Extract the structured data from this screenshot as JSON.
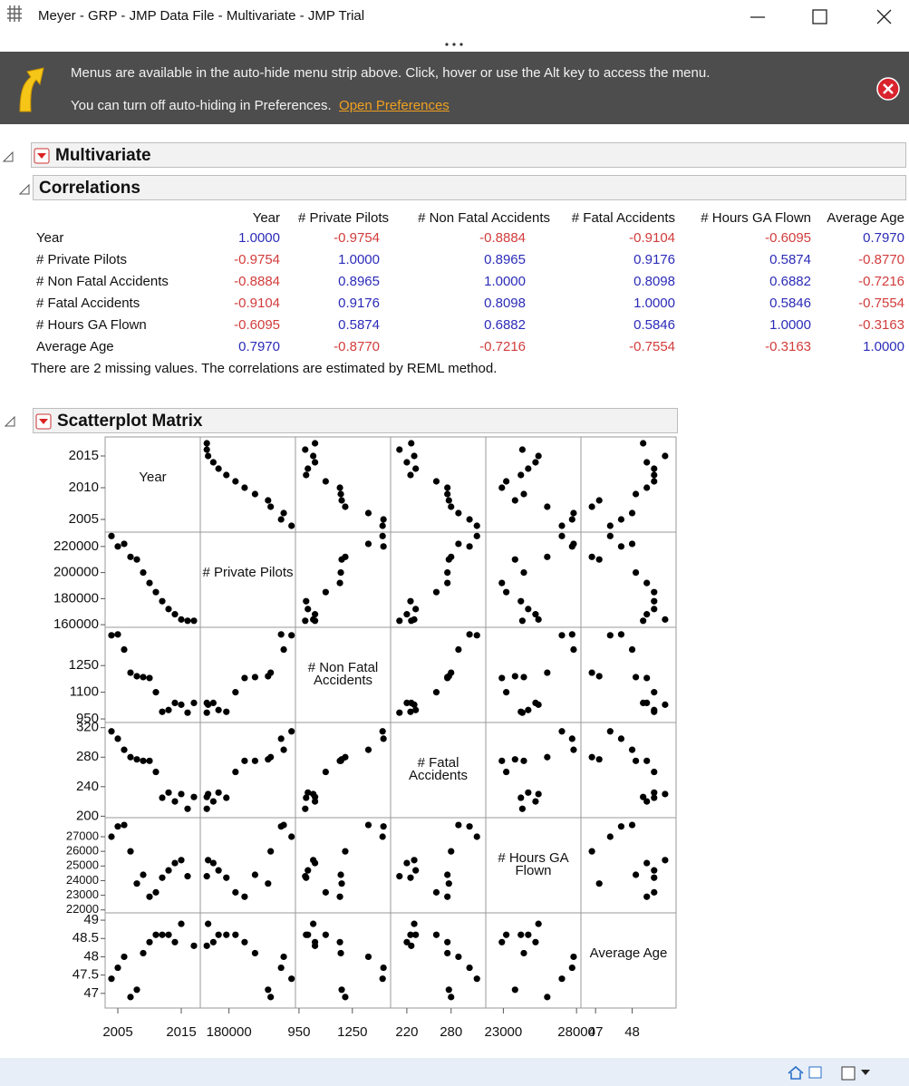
{
  "window": {
    "title": "Meyer - GRP - JMP Data File - Multivariate - JMP Trial"
  },
  "banner": {
    "line1": "Menus are available in the auto-hide menu strip above. Click, hover or use the Alt key to access the menu.",
    "line2": "You can turn off auto-hiding in Preferences.",
    "link": "Open Preferences"
  },
  "sections": {
    "multivariate": "Multivariate",
    "correlations": "Correlations",
    "scatterplot_matrix": "Scatterplot Matrix"
  },
  "variables": [
    {
      "name": "Year",
      "values": [
        2004,
        2005,
        2006,
        2007,
        2008,
        2009,
        2010,
        2011,
        2012,
        2013,
        2014,
        2015,
        2016,
        2017
      ],
      "lim": [
        2003,
        2018
      ],
      "ticks": [
        2005,
        2010,
        2015
      ],
      "xticks": [
        2005,
        2015
      ]
    },
    {
      "name": "# Private Pilots",
      "values": [
        228000,
        220000,
        222000,
        212000,
        210000,
        200000,
        192000,
        185000,
        178000,
        172000,
        168000,
        164000,
        163000,
        163000
      ],
      "lim": [
        158000,
        231000
      ],
      "ticks": [
        160000,
        180000,
        200000,
        220000
      ],
      "xticks": [
        180000
      ]
    },
    {
      "name": "# Non Fatal Accidents",
      "values": [
        1420,
        1425,
        1340,
        1210,
        1190,
        1185,
        1180,
        1100,
        990,
        1000,
        1040,
        1030,
        985,
        1040
      ],
      "lim": [
        930,
        1465
      ],
      "ticks": [
        950,
        1100,
        1250
      ],
      "xticks": [
        950,
        1250
      ]
    },
    {
      "name": "# Fatal Accidents",
      "values": [
        315,
        305,
        290,
        280,
        277,
        275,
        275,
        260,
        225,
        232,
        220,
        230,
        210,
        226
      ],
      "lim": [
        198,
        327
      ],
      "ticks": [
        200,
        240,
        280,
        320
      ],
      "xticks": [
        220,
        280
      ]
    },
    {
      "name": "# Hours GA Flown",
      "values": [
        27000,
        27700,
        27800,
        26000,
        23800,
        24400,
        22900,
        23200,
        24200,
        24700,
        25200,
        25400,
        24300,
        null
      ],
      "lim": [
        21800,
        28300
      ],
      "ticks": [
        22000,
        23000,
        24000,
        25000,
        26000,
        27000
      ],
      "xticks": [
        23000,
        28000
      ]
    },
    {
      "name": "Average Age",
      "values": [
        47.4,
        47.7,
        48.0,
        46.9,
        47.1,
        48.1,
        48.4,
        48.6,
        48.6,
        48.6,
        48.4,
        48.9,
        null,
        48.3
      ],
      "lim": [
        46.6,
        49.2
      ],
      "ticks": [
        47,
        47.5,
        48,
        48.5,
        49
      ],
      "xticks": [
        47,
        48
      ]
    }
  ],
  "correlations": {
    "rows": [
      [
        "1.0000",
        "-0.9754",
        "-0.8884",
        "-0.9104",
        "-0.6095",
        "0.7970"
      ],
      [
        "-0.9754",
        "1.0000",
        "0.8965",
        "0.9176",
        "0.5874",
        "-0.8770"
      ],
      [
        "-0.8884",
        "0.8965",
        "1.0000",
        "0.8098",
        "0.6882",
        "-0.7216"
      ],
      [
        "-0.9104",
        "0.9176",
        "0.8098",
        "1.0000",
        "0.5846",
        "-0.7554"
      ],
      [
        "-0.6095",
        "0.5874",
        "0.6882",
        "0.5846",
        "1.0000",
        "-0.3163"
      ],
      [
        "0.7970",
        "-0.8770",
        "-0.7216",
        "-0.7554",
        "-0.3163",
        "1.0000"
      ]
    ]
  },
  "note": "There are 2 missing values. The correlations are estimated by REML method."
}
